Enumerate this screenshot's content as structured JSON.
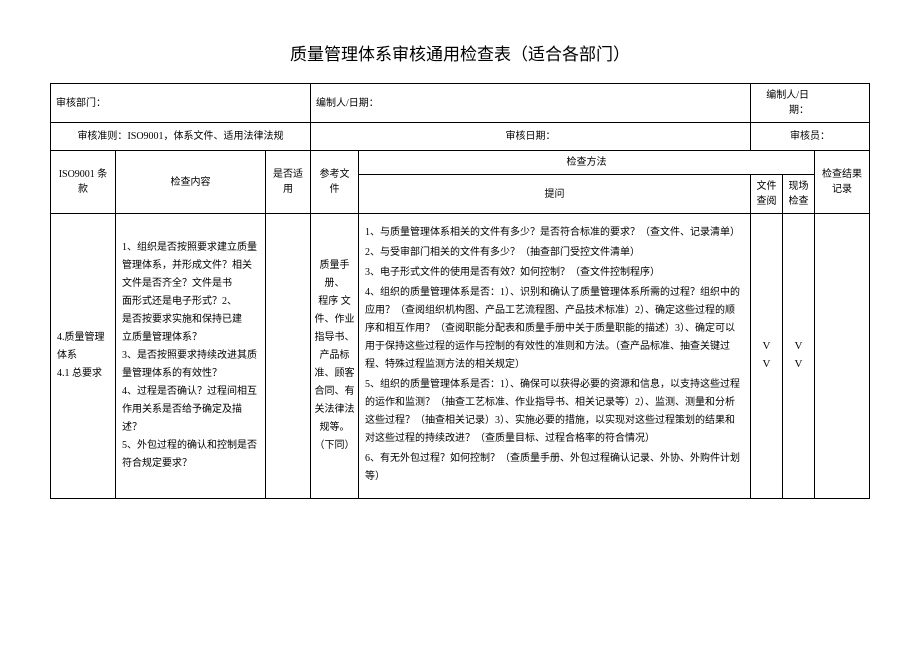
{
  "title": "质量管理体系审核通用检查表（适合各部门）",
  "header": {
    "dept_label": "审核部门：",
    "compiler_label": "编制人/日期：",
    "reviewer_label": "编制人/日期：",
    "criteria_label": "审核准则：",
    "criteria_value": "ISO9001，体系文件、适用法律法规",
    "audit_date_label": "审核日期：",
    "auditor_label": "审核员："
  },
  "columns": {
    "clause": "ISO9001 条款",
    "content": "检查内容",
    "applicable": "是否适用",
    "reference": "参考文件",
    "method": "检查方法",
    "question": "提问",
    "file_review": "文件查阅",
    "scene_check": "现场检查",
    "result": "检查结果记录"
  },
  "row": {
    "clause": "4.质量管理体系\n4.1 总要求",
    "content": "1、组织是否按照要求建立质量管理体系，并形成文件？相关文件是否齐全？文件是书\n面形式还是电子形式？2、\n是否按要求实施和保持已建\n立质量管理体系？\n3、是否按照要求持续改进其质量管理体系的有效性？\n4、过程是否确认？过程间相互作用关系是否给予确定及描述？\n5、外包过程的确认和控制是否符合规定要求？",
    "reference": "质量手册、\n程序 文件、作业指导书、\n产品标准、顾客合同、有关法律法规等。\n（下同）",
    "q1": "1、与质量管理体系相关的文件有多少？是否符合标准的要求？（查文件、记录清单）",
    "q2": "2、与受审部门相关的文件有多少？（抽查部门受控文件清单）",
    "q3": "3、电子形式文件的使用是否有效？如何控制？（查文件控制程序）",
    "q4": "4、组织的质量管理体系是否：1）、识别和确认了质量管理体系所需的过程？组织中的应用？（查阅组织机构图、产品工艺流程图、产品技术标准）2）、确定这些过程的顺序和相互作用？（查阅职能分配表和质量手册中关于质量职能的描述）3）、确定可以用于保持这些过程的运作与控制的有效性的准则和方法。（查产品标准、抽查关键过程、特殊过程监测方法的相关规定）",
    "q5": "5、组织的质量管理体系是否：1）、确保可以获得必要的资源和信息，以支持这些过程的运作和监测？（抽查工艺标准、作业指导书、相关记录等）2）、监测、测量和分析这些过程？（抽查相关记录）3）、实施必要的措施，以实现对这些过程策划的结果和对这些过程的持续改进？（查质量目标、过程合格率的符合情况）",
    "q6": "6、有无外包过程？如何控制？（查质量手册、外包过程确认记录、外协、外购件计划等）",
    "file_check": "V\nV",
    "scene_check": "V\nV"
  }
}
